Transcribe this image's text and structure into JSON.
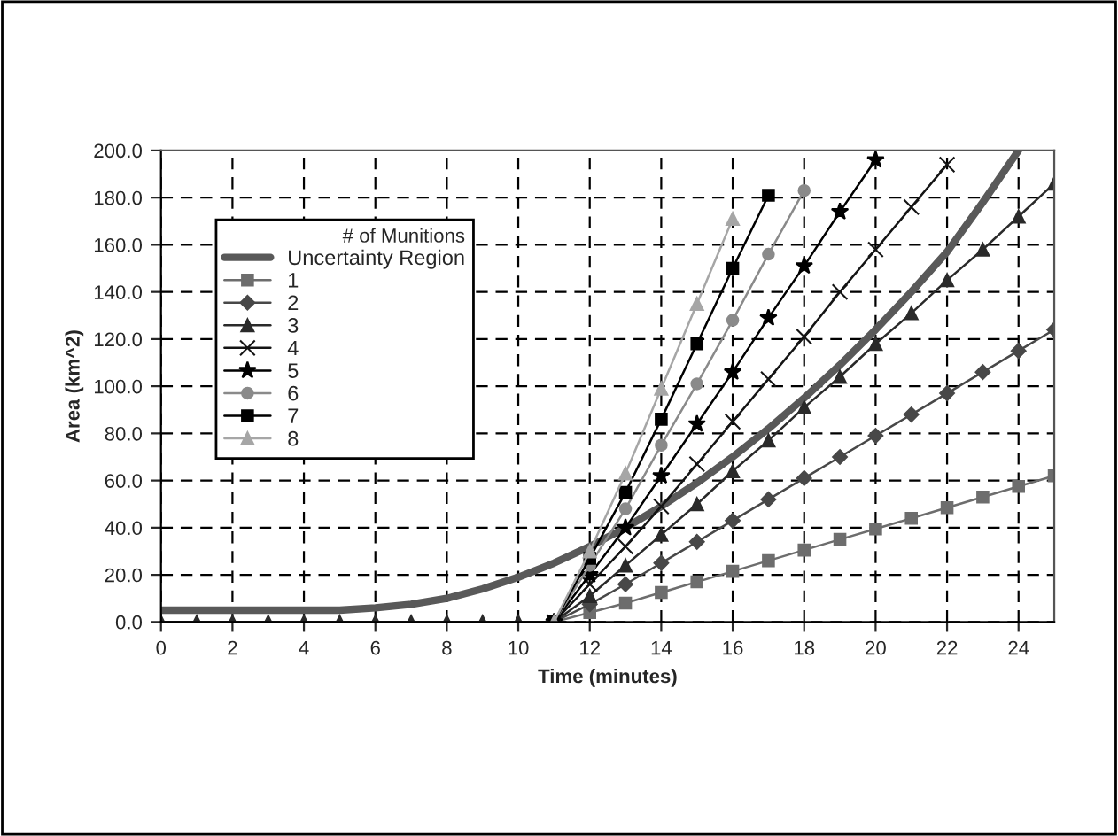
{
  "chart_data": {
    "type": "line",
    "xlabel": "Time (minutes)",
    "ylabel": "Area (km^2)",
    "legend_title": "# of Munitions",
    "legend": "left",
    "grid": true,
    "xlim": [
      0,
      25
    ],
    "xticks": [
      0,
      2,
      4,
      6,
      8,
      10,
      12,
      14,
      16,
      18,
      20,
      22,
      24
    ],
    "ylim": [
      0,
      200
    ],
    "yticks": [
      {
        "value": 0,
        "label": "0.0"
      },
      {
        "value": 20,
        "label": "20.0"
      },
      {
        "value": 40,
        "label": "40.0"
      },
      {
        "value": 60,
        "label": "60.0"
      },
      {
        "value": 80,
        "label": "80.0"
      },
      {
        "value": 100,
        "label": "100.0"
      },
      {
        "value": 120,
        "label": "120.0"
      },
      {
        "value": 140,
        "label": "140.0"
      },
      {
        "value": 160,
        "label": "160.0"
      },
      {
        "value": 180,
        "label": "180.0"
      },
      {
        "value": 200,
        "label": "200.0"
      }
    ],
    "series": [
      {
        "name": "Uncertainty Region",
        "color": "#595959",
        "marker": "none",
        "x": [
          0,
          1,
          2,
          3,
          4,
          5,
          6,
          7,
          8,
          9,
          10,
          11,
          12,
          13,
          14,
          15,
          16,
          17,
          18,
          19,
          20,
          21,
          22,
          23,
          24
        ],
        "values": [
          5,
          5,
          5,
          5,
          5,
          5,
          6,
          7.5,
          10,
          14,
          19,
          25,
          32,
          40,
          49,
          59,
          70,
          82,
          95,
          109,
          124,
          140,
          157,
          178,
          200
        ]
      },
      {
        "name": "1",
        "color": "#6d6d6d",
        "marker": "square",
        "x": [
          11,
          12,
          13,
          14,
          15,
          16,
          17,
          18,
          19,
          20,
          21,
          22,
          23,
          24,
          25
        ],
        "values": [
          0,
          4,
          8,
          12.5,
          17,
          21.5,
          26,
          30.5,
          35,
          39.5,
          44,
          48.5,
          53,
          57.5,
          62
        ]
      },
      {
        "name": "2",
        "color": "#484848",
        "marker": "diamond",
        "x": [
          11,
          12,
          13,
          14,
          15,
          16,
          17,
          18,
          19,
          20,
          21,
          22,
          23,
          24,
          25
        ],
        "values": [
          0,
          7.5,
          16,
          25,
          34,
          43,
          52,
          61,
          70,
          79,
          88,
          97,
          106,
          115,
          124
        ]
      },
      {
        "name": "3",
        "color": "#2a2a2a",
        "marker": "triangle",
        "x": [
          0,
          1,
          2,
          3,
          4,
          5,
          6,
          7,
          8,
          9,
          10,
          11,
          12,
          13,
          14,
          15,
          16,
          17,
          18,
          19,
          20,
          21,
          22,
          23,
          24,
          25
        ],
        "values": [
          0,
          0,
          0,
          0,
          0,
          0,
          0,
          0,
          0,
          0,
          0,
          0,
          11,
          24,
          37,
          50,
          64,
          77,
          91,
          104,
          118,
          131,
          145,
          158,
          172,
          186
        ]
      },
      {
        "name": "4",
        "color": "#141414",
        "marker": "cross",
        "x": [
          11,
          12,
          13,
          14,
          15,
          16,
          17,
          18,
          19,
          20,
          21,
          22
        ],
        "values": [
          0,
          16,
          32,
          49,
          67,
          85,
          103,
          121,
          140,
          158,
          176,
          194
        ]
      },
      {
        "name": "5",
        "color": "#000000",
        "marker": "star",
        "x": [
          11,
          12,
          13,
          14,
          15,
          16,
          17,
          18,
          19,
          20
        ],
        "values": [
          0,
          20,
          40,
          62,
          84,
          106,
          129,
          151,
          174,
          196
        ]
      },
      {
        "name": "6",
        "color": "#8a8a8a",
        "marker": "circle",
        "x": [
          11,
          12,
          13,
          14,
          15,
          16,
          17,
          18
        ],
        "values": [
          0,
          24,
          48,
          75,
          101,
          128,
          156,
          183
        ]
      },
      {
        "name": "7",
        "color": "#000000",
        "marker": "square",
        "x": [
          11,
          12,
          13,
          14,
          15,
          16,
          17
        ],
        "values": [
          0,
          27,
          55,
          86,
          118,
          150,
          181
        ]
      },
      {
        "name": "8",
        "color": "#a6a6a6",
        "marker": "triangle",
        "x": [
          11,
          12,
          13,
          14,
          15,
          16
        ],
        "values": [
          0,
          30,
          63,
          99,
          135,
          171
        ]
      }
    ]
  }
}
